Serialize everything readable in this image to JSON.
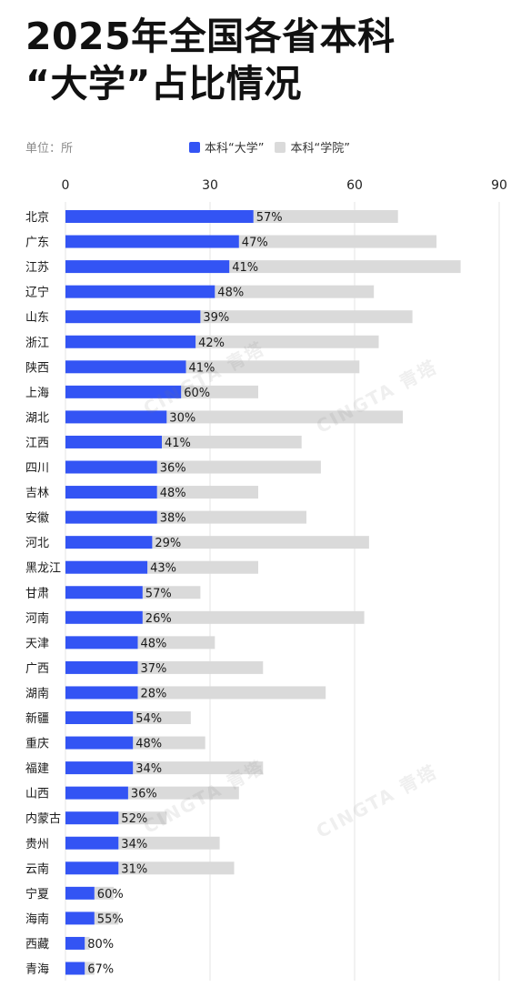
{
  "header": {
    "title_line1": "2025年全国各省本科",
    "title_line2": "“大学”占比情况",
    "unit": "单位：所"
  },
  "watermark": {
    "text": "CINGTA 青塔"
  },
  "colors": {
    "university": "#3354f4",
    "college": "#dadada",
    "grid": "#e6e6e6",
    "label": "#1a1a1a"
  },
  "chart_data": {
    "type": "bar",
    "orientation": "horizontal",
    "stacked": true,
    "legend": [
      "本科“大学”",
      "本科“学院”"
    ],
    "legend_position": "top",
    "x_ticks": [
      0,
      30,
      60,
      90
    ],
    "xlim": [
      0,
      90
    ],
    "categories": [
      "北京",
      "广东",
      "江苏",
      "辽宁",
      "山东",
      "浙江",
      "陕西",
      "上海",
      "湖北",
      "江西",
      "四川",
      "吉林",
      "安徽",
      "河北",
      "黑龙江",
      "甘肃",
      "河南",
      "天津",
      "广西",
      "湖南",
      "新疆",
      "重庆",
      "福建",
      "山西",
      "内蒙古",
      "贵州",
      "云南",
      "宁夏",
      "海南",
      "西藏",
      "青海"
    ],
    "series": [
      {
        "name": "本科“大学”",
        "values": [
          39,
          36,
          34,
          31,
          28,
          27,
          25,
          24,
          21,
          20,
          19,
          19,
          19,
          18,
          17,
          16,
          16,
          15,
          15,
          15,
          14,
          14,
          14,
          13,
          11,
          11,
          11,
          6,
          6,
          4,
          4
        ]
      },
      {
        "name": "本科“学院”",
        "values": [
          30,
          41,
          48,
          33,
          44,
          38,
          36,
          16,
          49,
          29,
          34,
          21,
          31,
          45,
          23,
          12,
          46,
          16,
          26,
          39,
          12,
          15,
          27,
          23,
          10,
          21,
          24,
          4,
          5,
          1,
          2
        ]
      }
    ],
    "data_labels": [
      "57%",
      "47%",
      "41%",
      "48%",
      "39%",
      "42%",
      "41%",
      "60%",
      "30%",
      "41%",
      "36%",
      "48%",
      "38%",
      "29%",
      "43%",
      "57%",
      "26%",
      "48%",
      "37%",
      "28%",
      "54%",
      "48%",
      "34%",
      "36%",
      "52%",
      "34%",
      "31%",
      "60%",
      "55%",
      "80%",
      "67%"
    ],
    "grid": true
  }
}
